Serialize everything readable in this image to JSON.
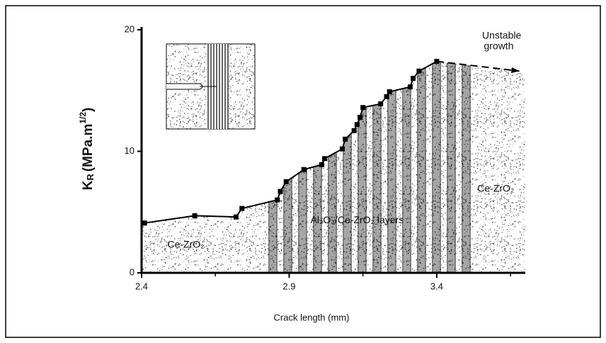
{
  "chart_data": {
    "type": "line",
    "ylabel": {
      "main": "K",
      "sub": "R",
      "unit": "(MPa.m",
      "sup": "1/2",
      "close": ")"
    },
    "xlabel": "Crack length (mm)",
    "xlim": [
      2.4,
      3.7
    ],
    "xticks": [
      2.4,
      2.9,
      3.4
    ],
    "xminor": [
      2.65,
      3.15,
      3.65
    ],
    "ylim": [
      0,
      20
    ],
    "yticks": [
      0,
      10,
      20
    ],
    "series": [
      {
        "color": "#000000",
        "style": "solid",
        "marker": "square",
        "x": [
          2.41,
          2.58,
          2.72,
          2.74,
          2.86,
          2.87,
          2.89,
          2.95,
          3.01,
          3.02,
          3.08,
          3.09,
          3.12,
          3.13,
          3.14,
          3.15,
          3.21,
          3.23,
          3.24,
          3.31,
          3.32,
          3.34,
          3.4
        ],
        "values": [
          4.1,
          4.7,
          4.6,
          5.3,
          6.0,
          6.7,
          7.5,
          8.5,
          8.9,
          9.4,
          10.2,
          11.0,
          11.7,
          12.2,
          12.8,
          13.6,
          13.9,
          14.5,
          14.9,
          15.3,
          16.0,
          16.6,
          17.4
        ]
      },
      {
        "color": "#000000",
        "style": "dashed",
        "marker": "arrow",
        "x": [
          3.4,
          3.68
        ],
        "values": [
          17.4,
          16.6
        ]
      }
    ],
    "annotations": [
      {
        "text": "Ce-ZrO₂",
        "x": 2.55,
        "y": 2.3
      },
      {
        "text": "Al₂O₃/Ce-ZrO₂ layers",
        "x": 3.13,
        "y": 4.3
      },
      {
        "text": "Ce-ZrO₂",
        "x": 3.6,
        "y": 6.9
      },
      {
        "text": "Unstable",
        "x": 3.62,
        "y": 19.5
      },
      {
        "text": "growth",
        "x": 3.61,
        "y": 18.6
      }
    ]
  }
}
